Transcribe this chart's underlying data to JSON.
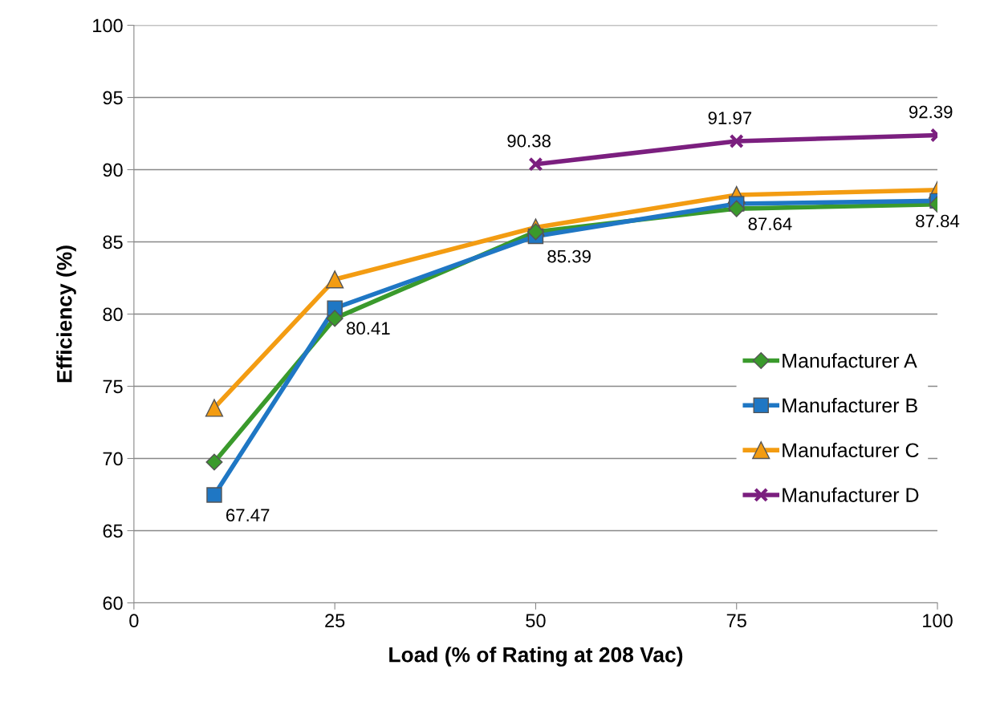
{
  "chart_data": {
    "type": "line",
    "xlabel": "Load (% of Rating at 208 Vac)",
    "ylabel": "Efficiency (%)",
    "x": [
      10,
      25,
      50,
      75,
      100
    ],
    "series": [
      {
        "name": "Manufacturer A",
        "color": "#3a9a2c",
        "marker": "diamond",
        "values": [
          69.75,
          79.7,
          85.7,
          87.3,
          87.6
        ]
      },
      {
        "name": "Manufacturer B",
        "color": "#1f77c4",
        "marker": "square",
        "values": [
          67.47,
          80.41,
          85.39,
          87.64,
          87.84
        ],
        "value_labels": [
          "67.47",
          "80.41",
          "85.39",
          "87.64",
          "87.84"
        ]
      },
      {
        "name": "Manufacturer C",
        "color": "#f39c12",
        "marker": "triangle",
        "values": [
          73.5,
          82.4,
          86.0,
          88.25,
          88.6
        ]
      },
      {
        "name": "Manufacturer D",
        "color": "#7b1f7f",
        "marker": "cross",
        "values": [
          null,
          null,
          90.38,
          91.97,
          92.39
        ],
        "value_labels": [
          null,
          null,
          "90.38",
          "91.97",
          "92.39"
        ]
      }
    ],
    "xlim": [
      0,
      100
    ],
    "xticks": [
      0,
      25,
      50,
      75,
      100
    ],
    "ylim": [
      60,
      100
    ],
    "yticks": [
      60,
      65,
      70,
      75,
      80,
      85,
      90,
      95,
      100
    ],
    "grid": "y",
    "legend": "right"
  }
}
